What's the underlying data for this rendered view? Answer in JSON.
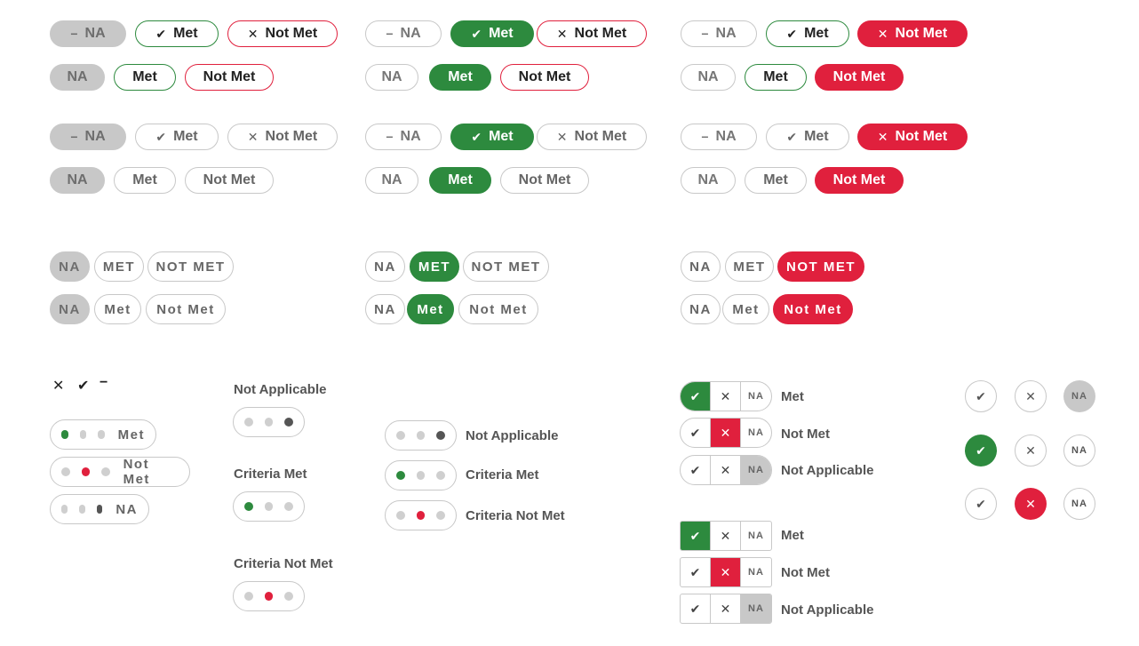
{
  "labels": {
    "na": "NA",
    "met": "Met",
    "not_met": "Not Met",
    "na_caps": "NA",
    "met_caps": "MET",
    "not_met_caps": "NOT MET",
    "not_applicable": "Not Applicable",
    "criteria_met": "Criteria Met",
    "criteria_not_met": "Criteria Not Met"
  },
  "icons": {
    "dash": "−",
    "check": "✔",
    "cross": "✕"
  },
  "colors": {
    "green": "#2d8a3e",
    "red": "#e0203d",
    "grey": "#c8c8c8"
  }
}
